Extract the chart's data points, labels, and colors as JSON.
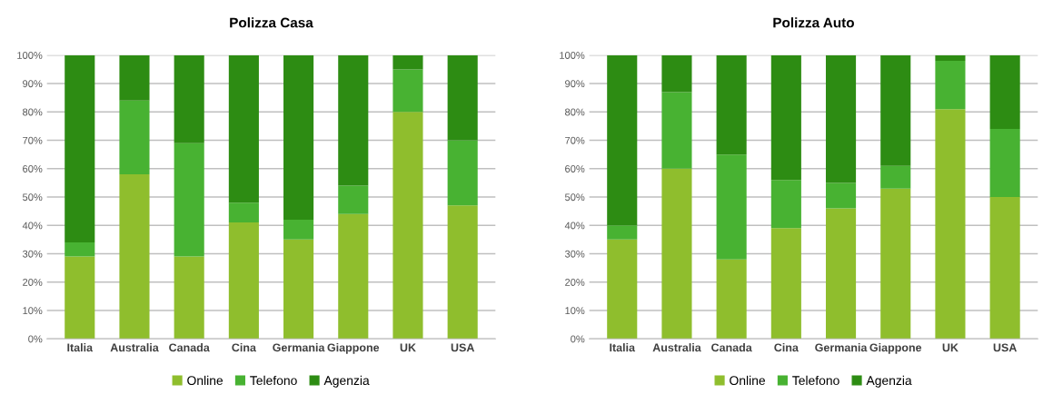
{
  "chart_data": [
    {
      "type": "bar",
      "title": "Polizza Casa",
      "stacked": true,
      "categories": [
        "Italia",
        "Australia",
        "Canada",
        "Cina",
        "Germania",
        "Giappone",
        "UK",
        "USA"
      ],
      "series": [
        {
          "name": "Online",
          "color": "#8fbe2d",
          "values": [
            29,
            58,
            29,
            41,
            35,
            44,
            80,
            47
          ]
        },
        {
          "name": "Telefono",
          "color": "#48b232",
          "values": [
            5,
            26,
            40,
            7,
            7,
            10,
            15,
            23
          ]
        },
        {
          "name": "Agenzia",
          "color": "#2d8c13",
          "values": [
            66,
            16,
            31,
            52,
            58,
            46,
            5,
            30
          ]
        }
      ],
      "ylim": [
        0,
        100
      ],
      "yticks": [
        {
          "value": 0,
          "label": "0%"
        },
        {
          "value": 10,
          "label": "10%"
        },
        {
          "value": 20,
          "label": "20%"
        },
        {
          "value": 30,
          "label": "30%"
        },
        {
          "value": 40,
          "label": "40%"
        },
        {
          "value": 50,
          "label": "50%"
        },
        {
          "value": 60,
          "label": "60%"
        },
        {
          "value": 70,
          "label": "70%"
        },
        {
          "value": 80,
          "label": "80%"
        },
        {
          "value": 90,
          "label": "90%"
        },
        {
          "value": 100,
          "label": "100%"
        }
      ],
      "grid": "y",
      "legend": "bottom"
    },
    {
      "type": "bar",
      "title": "Polizza Auto",
      "stacked": true,
      "categories": [
        "Italia",
        "Australia",
        "Canada",
        "Cina",
        "Germania",
        "Giappone",
        "UK",
        "USA"
      ],
      "series": [
        {
          "name": "Online",
          "color": "#8fbe2d",
          "values": [
            35,
            60,
            28,
            39,
            46,
            53,
            81,
            50
          ]
        },
        {
          "name": "Telefono",
          "color": "#48b232",
          "values": [
            5,
            27,
            37,
            17,
            9,
            8,
            17,
            24
          ]
        },
        {
          "name": "Agenzia",
          "color": "#2d8c13",
          "values": [
            60,
            13,
            35,
            44,
            45,
            39,
            2,
            26
          ]
        }
      ],
      "ylim": [
        0,
        100
      ],
      "yticks": [
        {
          "value": 0,
          "label": "0%"
        },
        {
          "value": 10,
          "label": "10%"
        },
        {
          "value": 20,
          "label": "20%"
        },
        {
          "value": 30,
          "label": "30%"
        },
        {
          "value": 40,
          "label": "40%"
        },
        {
          "value": 50,
          "label": "50%"
        },
        {
          "value": 60,
          "label": "60%"
        },
        {
          "value": 70,
          "label": "70%"
        },
        {
          "value": 80,
          "label": "80%"
        },
        {
          "value": 90,
          "label": "90%"
        },
        {
          "value": 100,
          "label": "100%"
        }
      ],
      "grid": "y",
      "legend": "bottom"
    }
  ]
}
